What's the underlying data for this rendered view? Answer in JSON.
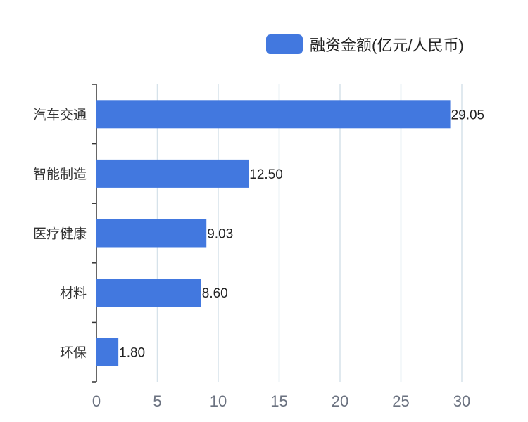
{
  "chart_data": {
    "type": "bar",
    "orientation": "horizontal",
    "categories": [
      "汽车交通",
      "智能制造",
      "医疗健康",
      "材料",
      "环保"
    ],
    "series": [
      {
        "name": "融资金额(亿元/人民币)",
        "values": [
          29.05,
          12.5,
          9.03,
          8.6,
          1.8
        ]
      }
    ],
    "value_labels": [
      "29.05",
      "12.50",
      "9.03",
      "8.60",
      "1.80"
    ],
    "xlim": [
      0,
      32
    ],
    "xticks": [
      0,
      5,
      10,
      15,
      20,
      25,
      30
    ],
    "grid": true,
    "legend_position": "top-right",
    "bar_color": "#4278df"
  }
}
